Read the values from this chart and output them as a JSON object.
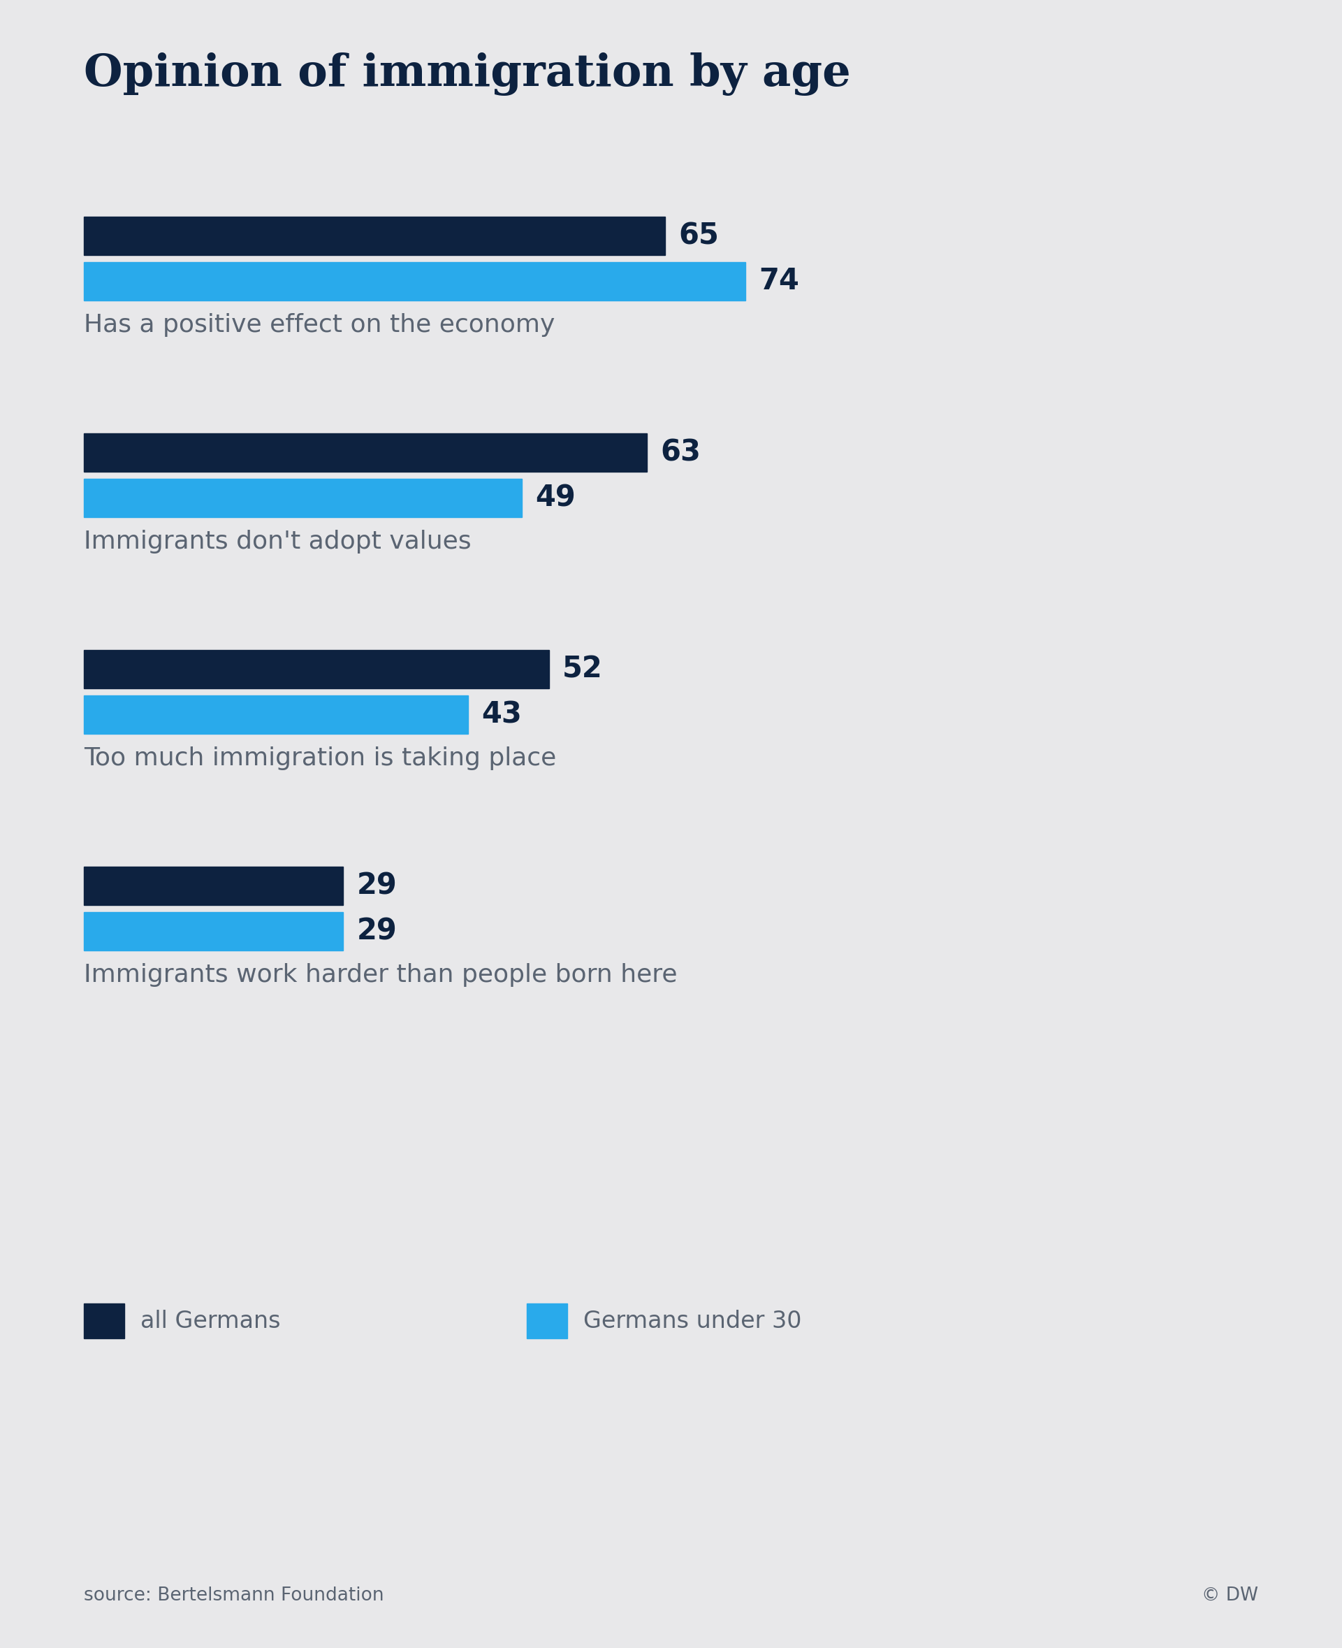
{
  "title": "Opinion of immigration by age",
  "background_color": "#e8e8ea",
  "dark_blue": "#0d2240",
  "light_blue": "#29aaeb",
  "label_color": "#5a6472",
  "title_color": "#0d2240",
  "value_color": "#0d2240",
  "categories": [
    "Has a positive effect on the economy",
    "Immigrants don't adopt values",
    "Too much immigration is taking place",
    "Immigrants work harder than people born here"
  ],
  "all_germans": [
    65,
    63,
    52,
    29
  ],
  "under_30": [
    74,
    49,
    43,
    29
  ],
  "max_value": 100,
  "legend_label_1": "all Germans",
  "legend_label_2": "Germans under 30",
  "source_text": "source: Bertelsmann Foundation",
  "copyright_text": "© DW",
  "title_fontsize": 46,
  "label_fontsize": 26,
  "value_fontsize": 30,
  "legend_fontsize": 24,
  "source_fontsize": 19
}
